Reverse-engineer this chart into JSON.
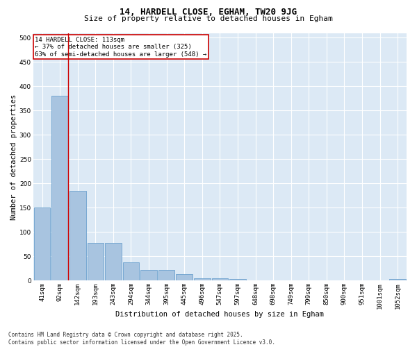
{
  "title1": "14, HARDELL CLOSE, EGHAM, TW20 9JG",
  "title2": "Size of property relative to detached houses in Egham",
  "xlabel": "Distribution of detached houses by size in Egham",
  "ylabel": "Number of detached properties",
  "categories": [
    "41sqm",
    "92sqm",
    "142sqm",
    "193sqm",
    "243sqm",
    "294sqm",
    "344sqm",
    "395sqm",
    "445sqm",
    "496sqm",
    "547sqm",
    "597sqm",
    "648sqm",
    "698sqm",
    "749sqm",
    "799sqm",
    "850sqm",
    "900sqm",
    "951sqm",
    "1001sqm",
    "1052sqm"
  ],
  "values": [
    150,
    380,
    185,
    78,
    78,
    37,
    22,
    22,
    13,
    5,
    5,
    3,
    0,
    0,
    0,
    0,
    0,
    0,
    0,
    0,
    3
  ],
  "bar_color": "#a8c4e0",
  "bar_edge_color": "#5a96c8",
  "vline_color": "#cc0000",
  "annotation_text": "14 HARDELL CLOSE: 113sqm\n← 37% of detached houses are smaller (325)\n63% of semi-detached houses are larger (548) →",
  "annotation_box_color": "#cc0000",
  "ylim": [
    0,
    510
  ],
  "yticks": [
    0,
    50,
    100,
    150,
    200,
    250,
    300,
    350,
    400,
    450,
    500
  ],
  "background_color": "#dce9f5",
  "grid_color": "#ffffff",
  "footer": "Contains HM Land Registry data © Crown copyright and database right 2025.\nContains public sector information licensed under the Open Government Licence v3.0.",
  "title1_fontsize": 9,
  "title2_fontsize": 8,
  "xlabel_fontsize": 7.5,
  "ylabel_fontsize": 7.5,
  "tick_fontsize": 6.5,
  "annot_fontsize": 6.5,
  "footer_fontsize": 5.5
}
